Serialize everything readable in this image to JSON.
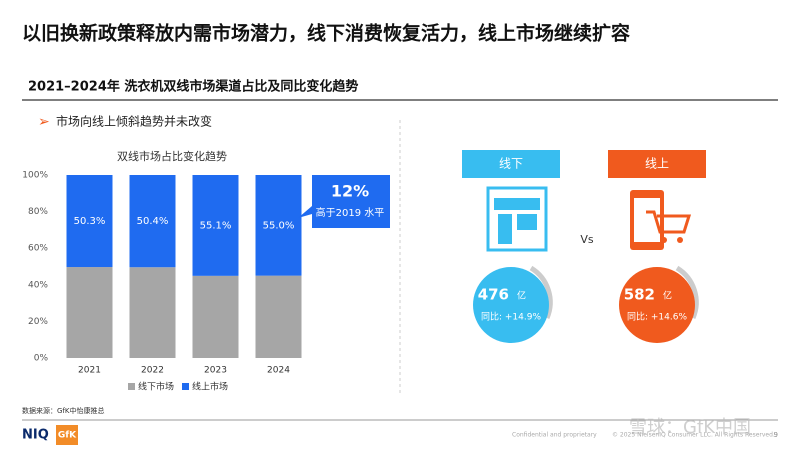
{
  "header": {
    "title": "以旧换新政策释放内需市场潜力，线下消费恢复活力，线上市场继续扩容",
    "subtitle": "2021–2024年 洗衣机双线市场渠道占比及同比变化趋势",
    "bullet": "市场向线上倾斜趋势并未改变"
  },
  "chart_data": {
    "type": "bar",
    "stacked": true,
    "title": "双线市场占比变化趋势",
    "categories": [
      "2021",
      "2022",
      "2023",
      "2024"
    ],
    "series": [
      {
        "name": "线下市场",
        "color": "#a6a6a6",
        "values": [
          49.7,
          49.6,
          44.9,
          45.0
        ]
      },
      {
        "name": "线上市场",
        "color": "#1f6bf0",
        "values": [
          50.3,
          50.4,
          55.1,
          55.0
        ],
        "value_labels": [
          "50.3%",
          "50.4%",
          "55.1%",
          "55.0%"
        ]
      }
    ],
    "ylim": [
      0,
      100
    ],
    "yticks": [
      {
        "value": 0,
        "label": "0%"
      },
      {
        "value": 20,
        "label": "20%"
      },
      {
        "value": 40,
        "label": "40%"
      },
      {
        "value": 60,
        "label": "60%"
      },
      {
        "value": 80,
        "label": "80%"
      },
      {
        "value": 100,
        "label": "100%"
      }
    ],
    "grid": false,
    "legend": "bottom",
    "annotation": {
      "value": "12%",
      "text": "高于2019 水平"
    }
  },
  "channels": [
    {
      "name": "线下",
      "color": "#38bdf0",
      "amount": "476",
      "unit": "亿",
      "growth": "同比: +14.9%"
    },
    {
      "name": "线上",
      "color": "#f05a1e",
      "amount": "582",
      "unit": "亿",
      "growth": "同比: +14.6%"
    }
  ],
  "vs": "Vs",
  "footer": {
    "source": "数据来源：GfK中怡康推总",
    "confidential": "Confidential and proprietary",
    "copyright": "© 2025 NielsenIQ Consumer LLC. All Rights Reserved.",
    "page": "9",
    "watermark": "雪球：GfK中国",
    "logo_niq": "NIQ",
    "logo_gfk": "GfK"
  }
}
